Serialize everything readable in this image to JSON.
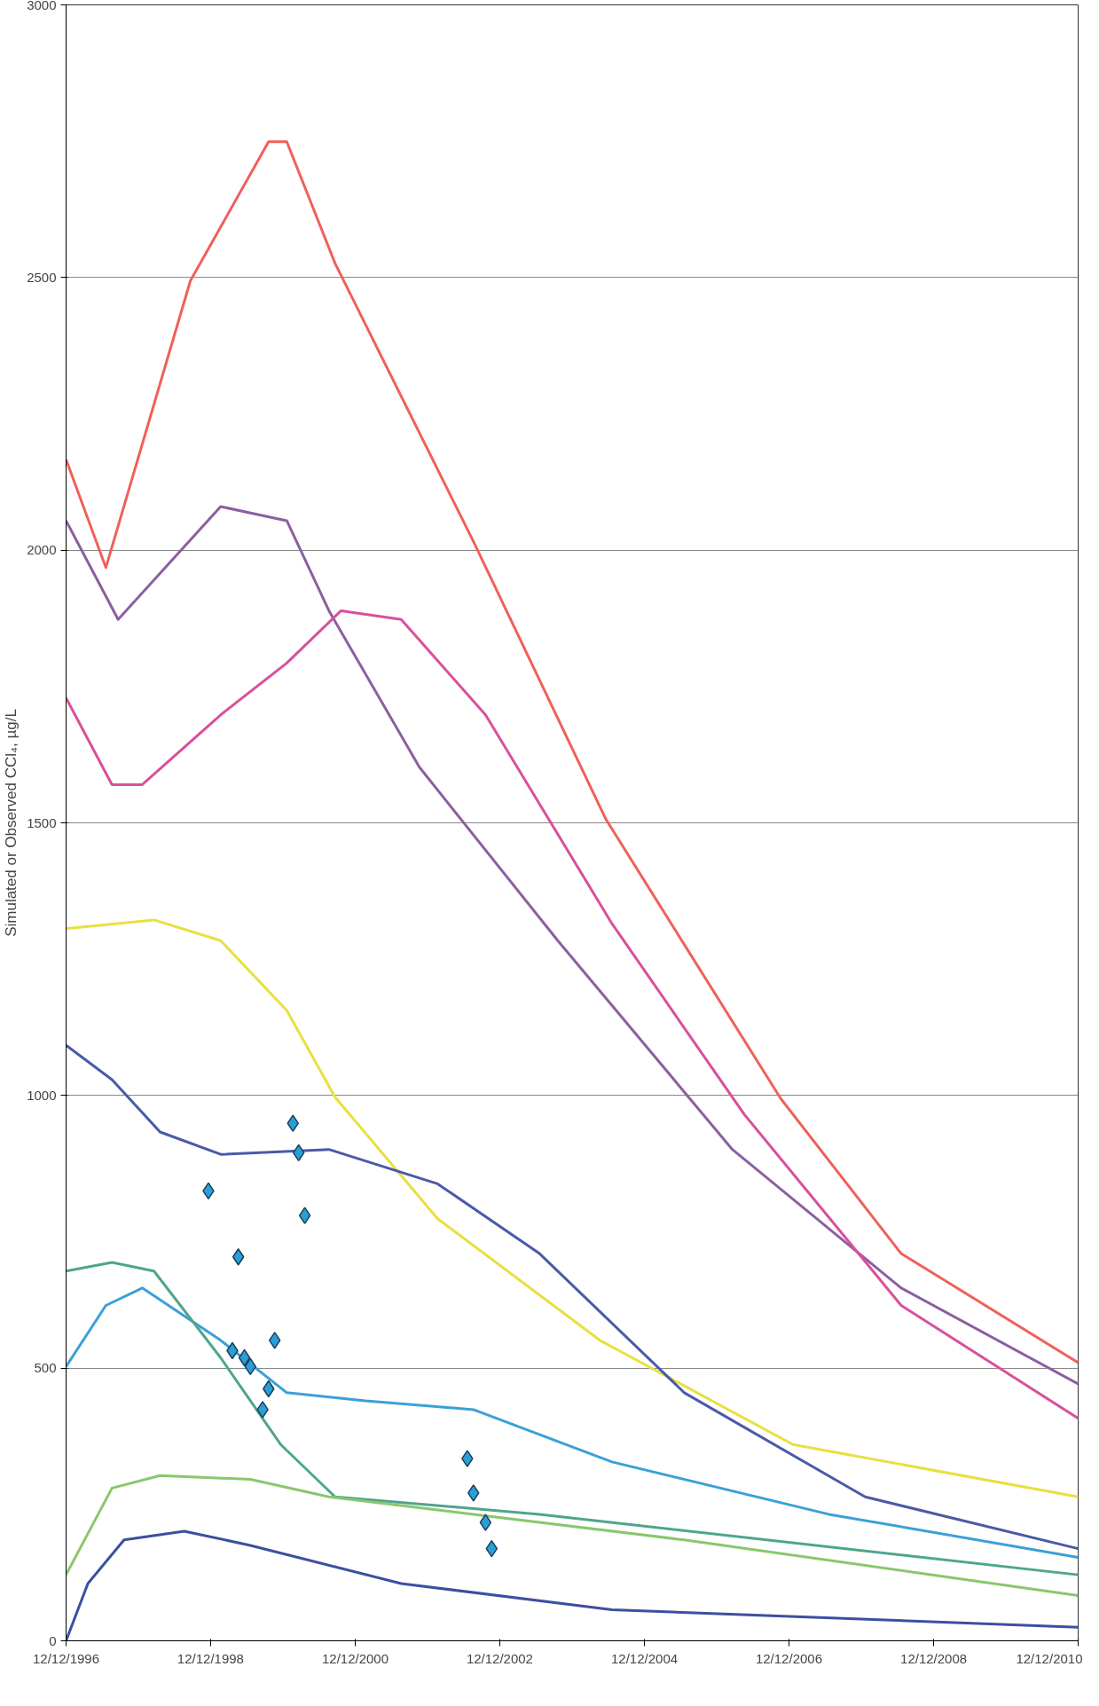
{
  "chart_data": {
    "type": "line",
    "ylabel": "Simulated or Observed CCl₄, µg/L",
    "xlim": [
      "1996-12-12",
      "2010-12-12"
    ],
    "xticks": [
      {
        "value": "1996-12-12",
        "label": "12/12/1996"
      },
      {
        "value": "1998-12-12",
        "label": "12/12/1998"
      },
      {
        "value": "2000-12-12",
        "label": "12/12/2000"
      },
      {
        "value": "2002-12-12",
        "label": "12/12/2002"
      },
      {
        "value": "2004-12-12",
        "label": "12/12/2004"
      },
      {
        "value": "2006-12-12",
        "label": "12/12/2006"
      },
      {
        "value": "2008-12-12",
        "label": "12/12/2008"
      },
      {
        "value": "2010-12-12",
        "label": "12/12/2010"
      }
    ],
    "ylim": [
      0,
      3000
    ],
    "yticks": [
      0,
      500,
      1000,
      1500,
      2000,
      2500,
      3000
    ],
    "grid": "y",
    "line_style": "solid",
    "series": [
      {
        "color": "#f0605a",
        "x": [
          "1996-12-12",
          "1997-07",
          "1998-09",
          "1999-10",
          "2000-01",
          "2000-09",
          "2002-08",
          "2004-06",
          "2006-11",
          "2008-07",
          "2010-12-12"
        ],
        "values": [
          2166,
          1968,
          2494,
          2749,
          2749,
          2526,
          2016,
          1506,
          994,
          710,
          510
        ]
      },
      {
        "color": "#8b5fa0",
        "x": [
          "1996-12-12",
          "1997-09",
          "1999-02",
          "2000-01",
          "2000-08",
          "2001-11",
          "2003-10",
          "2006-03",
          "2008-07",
          "2010-12-12"
        ],
        "values": [
          2054,
          1873,
          2080,
          2054,
          1889,
          1602,
          1284,
          901,
          647,
          471
        ]
      },
      {
        "color": "#d9509a",
        "x": [
          "1996-12-12",
          "1997-08",
          "1998-01",
          "1999-02",
          "2000-01",
          "2000-10",
          "2001-08",
          "2002-10",
          "2004-07",
          "2006-05",
          "2008-07",
          "2010-12-12"
        ],
        "values": [
          1729,
          1570,
          1570,
          1698,
          1793,
          1889,
          1873,
          1698,
          1315,
          965,
          615,
          408
        ]
      },
      {
        "color": "#e8e040",
        "x": [
          "1996-12-12",
          "1998-03",
          "1999-02",
          "2000-01",
          "2000-09",
          "2002-02",
          "2004-05",
          "2007-01",
          "2010-12-12"
        ],
        "values": [
          1306,
          1322,
          1284,
          1156,
          997,
          774,
          551,
          360,
          264
        ]
      },
      {
        "color": "#4a5aa8",
        "x": [
          "1996-12-12",
          "1997-08",
          "1998-04",
          "1999-02",
          "2000-08",
          "2002-02",
          "2003-07",
          "2005-07",
          "2008-01",
          "2010-12-12"
        ],
        "values": [
          1092,
          1029,
          933,
          892,
          901,
          838,
          710,
          455,
          264,
          169
        ]
      },
      {
        "color": "#3aa0d8",
        "x": [
          "1996-12-12",
          "1997-07",
          "1998-01",
          "1999-02",
          "2000-01",
          "2001-02",
          "2002-08",
          "2004-07",
          "2007-07",
          "2010-12-12"
        ],
        "values": [
          503,
          615,
          647,
          551,
          455,
          440,
          424,
          328,
          232,
          153
        ]
      },
      {
        "color": "#4fa58c",
        "x": [
          "1996-12-12",
          "1997-08",
          "1998-03",
          "1999-02",
          "1999-12",
          "2000-09",
          "2003-07",
          "2010-12-12"
        ],
        "values": [
          678,
          694,
          678,
          519,
          360,
          264,
          232,
          121
        ]
      },
      {
        "color": "#88c86c",
        "x": [
          "1996-12-12",
          "1997-08",
          "1998-04",
          "1999-07",
          "2000-08",
          "2002-08",
          "2005-07",
          "2010-12-12"
        ],
        "values": [
          121,
          280,
          303,
          296,
          264,
          232,
          185,
          83
        ]
      },
      {
        "color": "#3c4fa0",
        "x": [
          "1996-12-12",
          "1997-04",
          "1997-10",
          "1998-08",
          "1999-07",
          "2001-08",
          "2004-07",
          "2010-12-12"
        ],
        "values": [
          0,
          105,
          185,
          201,
          175,
          105,
          57,
          25
        ]
      },
      {
        "type": "scatter",
        "marker": "diamond",
        "color": "#2a9fd6",
        "x": [
          "2000-02",
          "2000-03",
          "2000-04",
          "1998-12",
          "1999-05",
          "1999-11",
          "1999-07",
          "1999-10",
          "1999-09",
          "1999-06",
          "1999-04",
          "2002-07",
          "2002-08",
          "2002-10",
          "2002-11"
        ],
        "values": [
          949,
          895,
          780,
          825,
          704,
          551,
          503,
          462,
          424,
          519,
          532,
          334,
          271,
          217,
          169
        ]
      }
    ]
  }
}
